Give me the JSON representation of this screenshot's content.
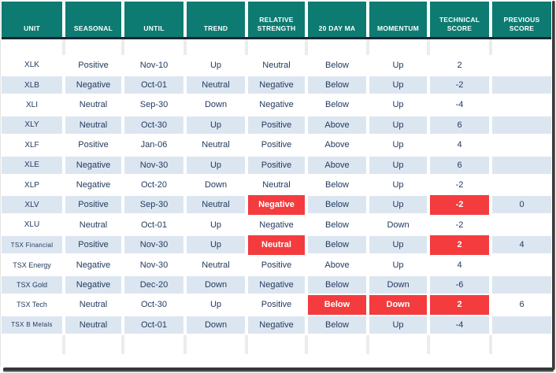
{
  "colors": {
    "header_bg": "#0d7b72",
    "row_alt_bg": "#dce6f1",
    "highlight_red": "#f43b3d",
    "text_navy": "#223a5e",
    "header_rule": "#1b2533"
  },
  "table": {
    "columns": [
      {
        "key": "unit",
        "label": "UNIT"
      },
      {
        "key": "seasonal",
        "label": "SEASONAL"
      },
      {
        "key": "until",
        "label": "UNTIL"
      },
      {
        "key": "trend",
        "label": "TREND"
      },
      {
        "key": "relative_strength",
        "label": "RELATIVE STRENGTH"
      },
      {
        "key": "ma20",
        "label": "20 DAY MA"
      },
      {
        "key": "momentum",
        "label": "MOMENTUM"
      },
      {
        "key": "technical",
        "label": "TECHNICAL SCORE"
      },
      {
        "key": "previous",
        "label": "PREVIOUS SCORE"
      }
    ],
    "rows": [
      {
        "unit": "XLK",
        "seasonal": "Positive",
        "until": "Nov-10",
        "trend": "Up",
        "relative_strength": "Neutral",
        "ma20": "Below",
        "momentum": "Up",
        "technical": "2",
        "previous": "",
        "red": []
      },
      {
        "unit": "XLB",
        "seasonal": "Negative",
        "until": "Oct-01",
        "trend": "Neutral",
        "relative_strength": "Negative",
        "ma20": "Below",
        "momentum": "Up",
        "technical": "-2",
        "previous": "",
        "red": []
      },
      {
        "unit": "XLI",
        "seasonal": "Neutral",
        "until": "Sep-30",
        "trend": "Down",
        "relative_strength": "Negative",
        "ma20": "Below",
        "momentum": "Up",
        "technical": "-4",
        "previous": "",
        "red": []
      },
      {
        "unit": "XLY",
        "seasonal": "Neutral",
        "until": "Oct-30",
        "trend": "Up",
        "relative_strength": "Positive",
        "ma20": "Above",
        "momentum": "Up",
        "technical": "6",
        "previous": "",
        "red": []
      },
      {
        "unit": "XLF",
        "seasonal": "Positive",
        "until": "Jan-06",
        "trend": "Neutral",
        "relative_strength": "Positive",
        "ma20": "Above",
        "momentum": "Up",
        "technical": "4",
        "previous": "",
        "red": []
      },
      {
        "unit": "XLE",
        "seasonal": "Negative",
        "until": "Nov-30",
        "trend": "Up",
        "relative_strength": "Positive",
        "ma20": "Above",
        "momentum": "Up",
        "technical": "6",
        "previous": "",
        "red": []
      },
      {
        "unit": "XLP",
        "seasonal": "Negative",
        "until": "Oct-20",
        "trend": "Down",
        "relative_strength": "Neutral",
        "ma20": "Below",
        "momentum": "Up",
        "technical": "-2",
        "previous": "",
        "red": []
      },
      {
        "unit": "XLV",
        "seasonal": "Positive",
        "until": "Sep-30",
        "trend": "Neutral",
        "relative_strength": "Negative",
        "ma20": "Below",
        "momentum": "Up",
        "technical": "-2",
        "previous": "0",
        "red": [
          "relative_strength",
          "technical"
        ]
      },
      {
        "unit": "XLU",
        "seasonal": "Neutral",
        "until": "Oct-01",
        "trend": "Up",
        "relative_strength": "Negative",
        "ma20": "Below",
        "momentum": "Down",
        "technical": "-2",
        "previous": "",
        "red": []
      },
      {
        "unit": "TSX Financial",
        "seasonal": "Positive",
        "until": "Nov-30",
        "trend": "Up",
        "relative_strength": "Neutral",
        "ma20": "Below",
        "momentum": "Up",
        "technical": "2",
        "previous": "4",
        "red": [
          "relative_strength",
          "technical"
        ]
      },
      {
        "unit": "TSX Energy",
        "seasonal": "Negative",
        "until": "Nov-30",
        "trend": "Neutral",
        "relative_strength": "Positive",
        "ma20": "Above",
        "momentum": "Up",
        "technical": "4",
        "previous": "",
        "red": []
      },
      {
        "unit": "TSX Gold",
        "seasonal": "Negative",
        "until": "Dec-20",
        "trend": "Down",
        "relative_strength": "Negative",
        "ma20": "Below",
        "momentum": "Down",
        "technical": "-6",
        "previous": "",
        "red": []
      },
      {
        "unit": "TSX Tech",
        "seasonal": "Neutral",
        "until": "Oct-30",
        "trend": "Up",
        "relative_strength": "Positive",
        "ma20": "Below",
        "momentum": "Down",
        "technical": "2",
        "previous": "6",
        "red": [
          "ma20",
          "momentum",
          "technical"
        ]
      },
      {
        "unit": "TSX B Metals",
        "seasonal": "Neutral",
        "until": "Oct-01",
        "trend": "Down",
        "relative_strength": "Negative",
        "ma20": "Below",
        "momentum": "Up",
        "technical": "-4",
        "previous": "",
        "red": []
      }
    ]
  }
}
